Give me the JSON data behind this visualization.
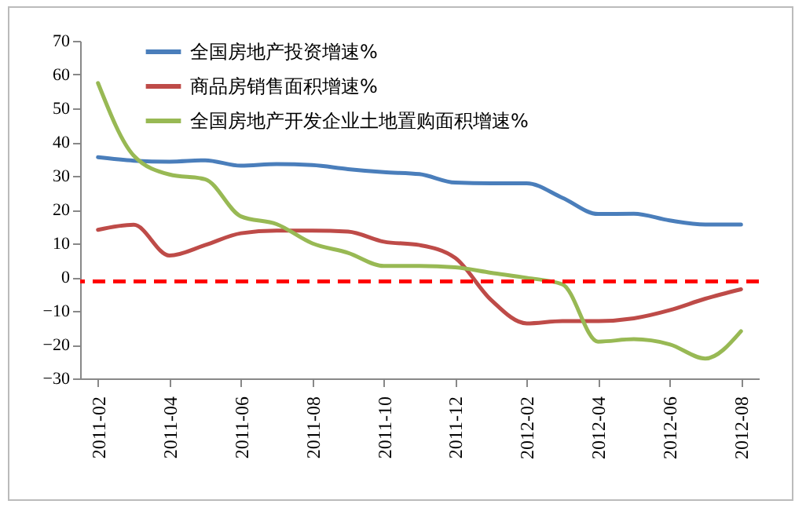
{
  "chart_data": {
    "type": "line",
    "categories": [
      "2011-02",
      null,
      "2011-04",
      null,
      "2011-06",
      null,
      "2011-08",
      null,
      "2011-10",
      null,
      "2011-12",
      null,
      "2012-02",
      null,
      "2012-04",
      null,
      "2012-06",
      null,
      "2012-08"
    ],
    "series": [
      {
        "name": "全国房地产投资增速%",
        "color": "#4a7ebb",
        "values": [
          35.5,
          34.5,
          34.2,
          34.6,
          33,
          33.5,
          33.2,
          32,
          31.1,
          30.5,
          28,
          27.8,
          27.8,
          23.5,
          18.7,
          18.8,
          16.8,
          15.6,
          15.6
        ]
      },
      {
        "name": "商品房销售面积增速%",
        "color": "#be4b48",
        "values": [
          14,
          15.5,
          6.4,
          9.5,
          13,
          13.8,
          13.8,
          13.5,
          10.5,
          9.5,
          5.7,
          -6.7,
          -13.7,
          -13,
          -13,
          -12.2,
          -9.8,
          -6.4,
          -3.6
        ]
      },
      {
        "name": "全国房地产开发企业土地置购面积增速%",
        "color": "#98b954",
        "values": [
          57.5,
          36,
          30.4,
          29,
          18,
          15.7,
          10,
          7.2,
          3.3,
          3.3,
          2.9,
          1.3,
          -0.2,
          -2.1,
          -19.1,
          -18.4,
          -19.9,
          -24.1,
          -16
        ]
      }
    ],
    "ylim": [
      -30,
      70
    ],
    "yticks": [
      -30,
      -20,
      -10,
      0,
      10,
      20,
      30,
      40,
      50,
      60,
      70
    ],
    "ref_lines": [
      {
        "axis": "y",
        "value": -1.3,
        "color": "#ff0000",
        "line_style": "dashed"
      }
    ],
    "grid": false,
    "legend": "top left",
    "line_style": "solid",
    "marker": "none"
  }
}
